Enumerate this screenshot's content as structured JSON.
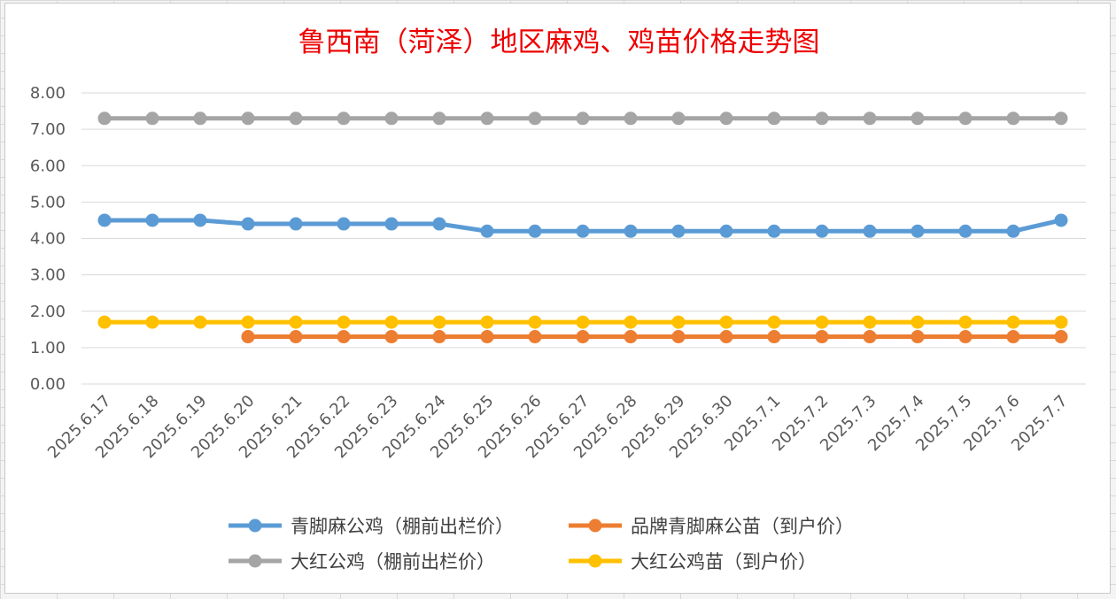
{
  "chart_data": {
    "type": "line",
    "title": "鲁西南（菏泽）地区麻鸡、鸡苗价格走势图",
    "xlabel": "",
    "ylabel": "",
    "ylim": [
      0,
      8
    ],
    "y_ticks": [
      "0.00",
      "1.00",
      "2.00",
      "3.00",
      "4.00",
      "5.00",
      "6.00",
      "7.00",
      "8.00"
    ],
    "y_tick_values": [
      0,
      1,
      2,
      3,
      4,
      5,
      6,
      7,
      8
    ],
    "grid": true,
    "legend_position": "bottom",
    "categories": [
      "2025.6.17",
      "2025.6.18",
      "2025.6.19",
      "2025.6.20",
      "2025.6.21",
      "2025.6.22",
      "2025.6.23",
      "2025.6.24",
      "2025.6.25",
      "2025.6.26",
      "2025.6.27",
      "2025.6.28",
      "2025.6.29",
      "2025.6.30",
      "2025.7.1",
      "2025.7.2",
      "2025.7.3",
      "2025.7.4",
      "2025.7.5",
      "2025.7.6",
      "2025.7.7"
    ],
    "series": [
      {
        "name": "青脚麻公鸡（棚前出栏价）",
        "color": "#5b9bd5",
        "values": [
          4.5,
          4.5,
          4.5,
          4.4,
          4.4,
          4.4,
          4.4,
          4.4,
          4.2,
          4.2,
          4.2,
          4.2,
          4.2,
          4.2,
          4.2,
          4.2,
          4.2,
          4.2,
          4.2,
          4.2,
          4.5
        ]
      },
      {
        "name": "品牌青脚麻公苗（到户价）",
        "color": "#ed7d31",
        "values": [
          null,
          null,
          null,
          1.3,
          1.3,
          1.3,
          1.3,
          1.3,
          1.3,
          1.3,
          1.3,
          1.3,
          1.3,
          1.3,
          1.3,
          1.3,
          1.3,
          1.3,
          1.3,
          1.3,
          1.3
        ]
      },
      {
        "name": "大红公鸡（棚前出栏价）",
        "color": "#a5a5a5",
        "values": [
          7.3,
          7.3,
          7.3,
          7.3,
          7.3,
          7.3,
          7.3,
          7.3,
          7.3,
          7.3,
          7.3,
          7.3,
          7.3,
          7.3,
          7.3,
          7.3,
          7.3,
          7.3,
          7.3,
          7.3,
          7.3
        ]
      },
      {
        "name": "大红公鸡苗（到户价）",
        "color": "#ffc000",
        "values": [
          1.7,
          1.7,
          1.7,
          1.7,
          1.7,
          1.7,
          1.7,
          1.7,
          1.7,
          1.7,
          1.7,
          1.7,
          1.7,
          1.7,
          1.7,
          1.7,
          1.7,
          1.7,
          1.7,
          1.7,
          1.7
        ]
      }
    ]
  }
}
